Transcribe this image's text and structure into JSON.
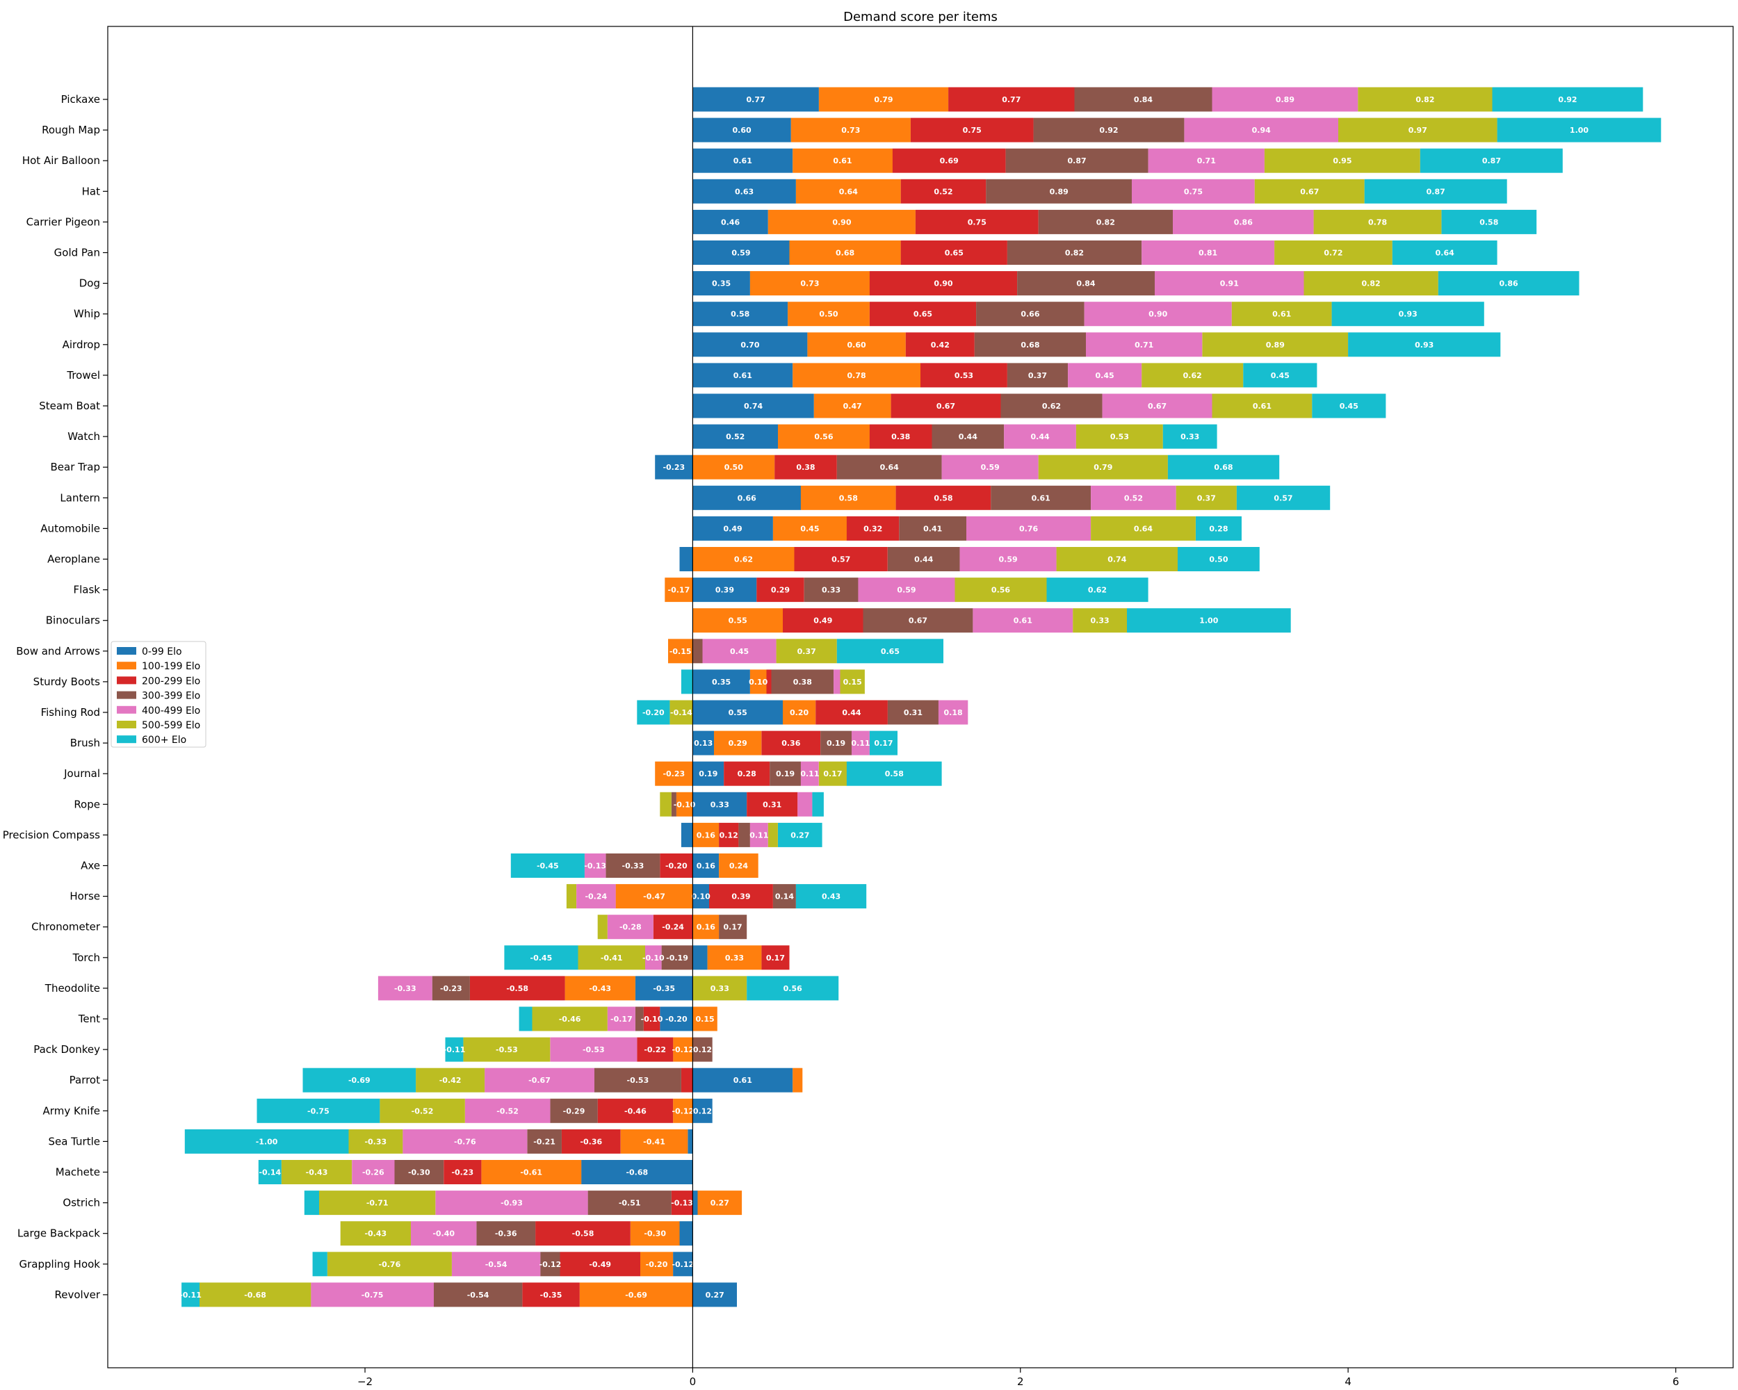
{
  "chart_data": {
    "type": "bar",
    "orientation": "horizontal",
    "stacked": "diverging",
    "title": "Demand score per items",
    "xlabel": "",
    "ylabel": "",
    "xlim": [
      -3.57,
      6.35
    ],
    "xticks": [
      -2,
      0,
      2,
      4,
      6
    ],
    "xtick_labels": [
      "−2",
      "0",
      "2",
      "4",
      "6"
    ],
    "grid": false,
    "legend_position": "center-left",
    "categories": [
      "Pickaxe",
      "Rough Map",
      "Hot Air Balloon",
      "Hat",
      "Carrier Pigeon",
      "Gold Pan",
      "Dog",
      "Whip",
      "Airdrop",
      "Trowel",
      "Steam Boat",
      "Watch",
      "Bear Trap",
      "Lantern",
      "Automobile",
      "Aeroplane",
      "Flask",
      "Binoculars",
      "Bow and Arrows",
      "Sturdy Boots",
      "Fishing Rod",
      "Brush",
      "Journal",
      "Rope",
      "Precision Compass",
      "Axe",
      "Horse",
      "Chronometer",
      "Torch",
      "Theodolite",
      "Tent",
      "Pack Donkey",
      "Parrot",
      "Army Knife",
      "Sea Turtle",
      "Machete",
      "Ostrich",
      "Large Backpack",
      "Grappling Hook",
      "Revolver"
    ],
    "series": [
      {
        "name": "0-99 Elo",
        "color": "#1f77b4",
        "values": [
          0.77,
          0.6,
          0.61,
          0.63,
          0.46,
          0.59,
          0.35,
          0.58,
          0.7,
          0.61,
          0.74,
          0.52,
          -0.23,
          0.66,
          0.49,
          -0.08,
          0.39,
          0.0,
          0.0,
          0.35,
          0.55,
          0.13,
          0.19,
          0.33,
          -0.07,
          0.16,
          0.1,
          0.0,
          0.09,
          -0.35,
          -0.2,
          0.0,
          0.61,
          0.12,
          -0.03,
          -0.68,
          0.03,
          -0.08,
          -0.12,
          0.27
        ]
      },
      {
        "name": "100-199 Elo",
        "color": "#ff7f0e",
        "values": [
          0.79,
          0.73,
          0.61,
          0.64,
          0.9,
          0.68,
          0.73,
          0.5,
          0.6,
          0.78,
          0.47,
          0.56,
          0.5,
          0.58,
          0.45,
          0.62,
          -0.17,
          0.55,
          -0.15,
          0.1,
          0.2,
          0.29,
          -0.23,
          -0.1,
          0.16,
          0.24,
          -0.47,
          0.16,
          0.33,
          -0.43,
          0.15,
          -0.12,
          0.06,
          -0.12,
          -0.41,
          -0.61,
          0.27,
          -0.3,
          -0.2,
          -0.69
        ]
      },
      {
        "name": "200-299 Elo",
        "color": "#d62728",
        "values": [
          0.77,
          0.75,
          0.69,
          0.52,
          0.75,
          0.65,
          0.9,
          0.65,
          0.42,
          0.53,
          0.67,
          0.38,
          0.38,
          0.58,
          0.32,
          0.57,
          0.29,
          0.49,
          0.0,
          0.03,
          0.44,
          0.36,
          0.28,
          0.31,
          0.12,
          -0.2,
          0.39,
          -0.24,
          0.17,
          -0.58,
          -0.1,
          -0.22,
          -0.07,
          -0.46,
          -0.36,
          -0.23,
          -0.13,
          -0.58,
          -0.49,
          -0.35
        ]
      },
      {
        "name": "300-399 Elo",
        "color": "#8c564b",
        "values": [
          0.84,
          0.92,
          0.87,
          0.89,
          0.82,
          0.82,
          0.84,
          0.66,
          0.68,
          0.37,
          0.62,
          0.44,
          0.64,
          0.61,
          0.41,
          0.44,
          0.33,
          0.67,
          0.06,
          0.38,
          0.31,
          0.19,
          0.19,
          -0.03,
          0.07,
          -0.33,
          0.14,
          0.17,
          -0.19,
          -0.23,
          -0.05,
          0.12,
          -0.53,
          -0.29,
          -0.21,
          -0.3,
          -0.51,
          -0.36,
          -0.12,
          -0.54
        ]
      },
      {
        "name": "400-499 Elo",
        "color": "#e377c2",
        "values": [
          0.89,
          0.94,
          0.71,
          0.75,
          0.86,
          0.81,
          0.91,
          0.9,
          0.71,
          0.45,
          0.67,
          0.44,
          0.59,
          0.52,
          0.76,
          0.59,
          0.59,
          0.61,
          0.45,
          0.04,
          0.18,
          0.11,
          0.11,
          0.09,
          0.11,
          -0.13,
          -0.24,
          -0.28,
          -0.1,
          -0.33,
          -0.17,
          -0.53,
          -0.67,
          -0.52,
          -0.76,
          -0.26,
          -0.93,
          -0.4,
          -0.54,
          -0.75
        ]
      },
      {
        "name": "500-599 Elo",
        "color": "#bcbd22",
        "values": [
          0.82,
          0.97,
          0.95,
          0.67,
          0.78,
          0.72,
          0.82,
          0.61,
          0.89,
          0.62,
          0.61,
          0.53,
          0.79,
          0.37,
          0.64,
          0.74,
          0.56,
          0.33,
          0.37,
          0.15,
          -0.14,
          0.0,
          0.17,
          -0.07,
          0.06,
          0.0,
          -0.06,
          -0.06,
          -0.41,
          0.33,
          -0.46,
          -0.53,
          -0.42,
          -0.52,
          -0.33,
          -0.43,
          -0.71,
          -0.43,
          -0.76,
          -0.68
        ]
      },
      {
        "name": "600+ Elo",
        "color": "#17becf",
        "values": [
          0.92,
          1.0,
          0.87,
          0.87,
          0.58,
          0.64,
          0.86,
          0.93,
          0.93,
          0.45,
          0.45,
          0.33,
          0.68,
          0.57,
          0.28,
          0.5,
          0.62,
          1.0,
          0.65,
          -0.07,
          -0.2,
          0.17,
          0.58,
          0.07,
          0.27,
          -0.45,
          0.43,
          0.0,
          -0.45,
          0.56,
          -0.08,
          -0.11,
          -0.69,
          -0.75,
          -1.0,
          -0.14,
          -0.09,
          0.0,
          -0.09,
          -0.11
        ]
      }
    ]
  }
}
